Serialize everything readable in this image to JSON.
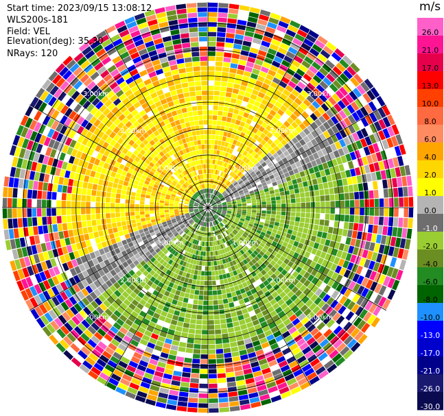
{
  "header": {
    "start_time": "Start time: 2023/09/15 13:08:12",
    "instrument": "WLS200s-181",
    "field": "Field: VEL",
    "elevation": "Elevation(deg): 35.30",
    "nrays": "NRays: 120"
  },
  "colorbar": {
    "unit": "m/s",
    "ticks": [
      "26.0",
      "21.0",
      "17.0",
      "13.0",
      "10.0",
      "8.0",
      "6.0",
      "4.0",
      "2.0",
      "1.0",
      "0.0",
      "-1.0",
      "-2.0",
      "-4.0",
      "-6.0",
      "-8.0",
      "-10.0",
      "-13.0",
      "-17.0",
      "-21.0",
      "-26.0",
      "-30.0"
    ],
    "colors": [
      "#ff5fc8",
      "#ff1493",
      "#e6004c",
      "#ff0000",
      "#ff4000",
      "#ff6a40",
      "#ff8c60",
      "#ffa500",
      "#ffd700",
      "#ffff00",
      "#b4b4b4",
      "#6e6e6e",
      "#9acd32",
      "#6b8e23",
      "#228b22",
      "#006400",
      "#1e90ff",
      "#0000ff",
      "#0000cd",
      "#00008b",
      "#191970",
      "#0a0a50"
    ]
  },
  "chart_data": {
    "type": "heatmap",
    "plot": "PPI polar scan",
    "field": "VEL",
    "units": "m/s",
    "nrays": 120,
    "range_ring_labels": [
      "1.00km",
      "2.00km",
      "3.00km"
    ],
    "range_rings_km": [
      1,
      2,
      3
    ],
    "max_range_km": 3.9,
    "color_scale_ticks": [
      26.0,
      21.0,
      17.0,
      13.0,
      10.0,
      8.0,
      6.0,
      4.0,
      2.0,
      1.0,
      0.0,
      -1.0,
      -2.0,
      -4.0,
      -6.0,
      -8.0,
      -10.0,
      -13.0,
      -17.0,
      -21.0,
      -26.0,
      -30.0
    ],
    "pattern": "inner ~2.7 km: positive (yellow, 1-4 m/s) sector toward north/west, negative (green, -1 to -4 m/s) toward south/east with grey zero band; beyond ~3 km: noisy multicolour gates"
  }
}
